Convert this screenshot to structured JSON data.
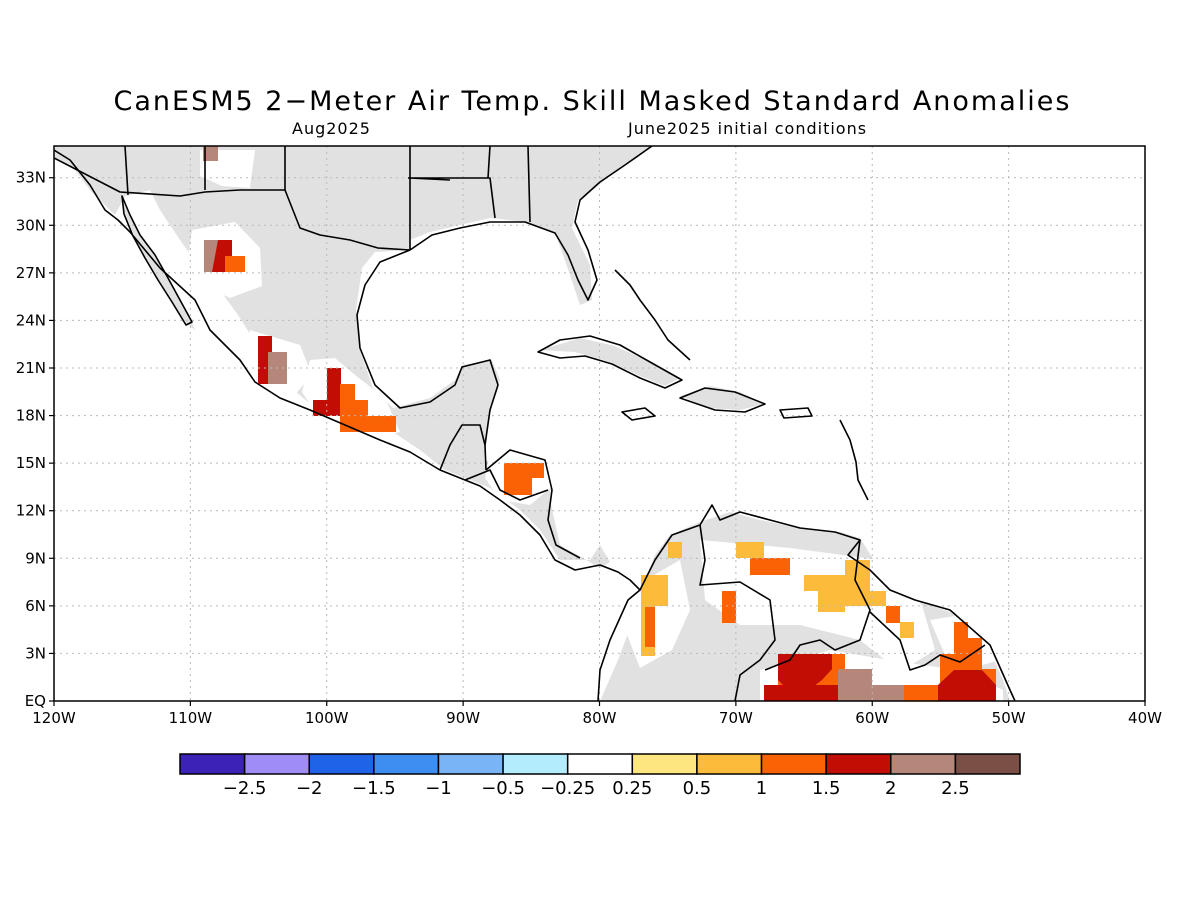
{
  "title": "CanESM5 2−Meter Air Temp. Skill Masked Standard Anomalies",
  "subtitle_left": "Aug2025",
  "subtitle_right": "June2025 initial conditions",
  "map": {
    "lon_range": [
      -120,
      -40
    ],
    "lat_range": [
      0,
      35
    ],
    "lon_ticks": [
      -120,
      -110,
      -100,
      -90,
      -80,
      -70,
      -60,
      -50,
      -40
    ],
    "lon_labels": [
      "120W",
      "110W",
      "100W",
      "90W",
      "80W",
      "70W",
      "60W",
      "50W",
      "40W"
    ],
    "lat_ticks": [
      0,
      3,
      6,
      9,
      12,
      15,
      18,
      21,
      24,
      27,
      30,
      33
    ],
    "lat_labels": [
      "EQ",
      "3N",
      "6N",
      "9N",
      "12N",
      "15N",
      "18N",
      "21N",
      "24N",
      "27N",
      "30N",
      "33N"
    ],
    "gridlines": true,
    "masked_land_color": "#e1e1e1"
  },
  "colorbar": {
    "colors": [
      "#3c22b6",
      "#9f8cf5",
      "#1f63e8",
      "#3d8ef0",
      "#79b4f7",
      "#b3ecfc",
      "#ffffff",
      "#fde680",
      "#fdbb3c",
      "#fb6205",
      "#c20d04",
      "#b4877a",
      "#7b4f45"
    ],
    "labels": [
      "−2.5",
      "−2",
      "−1.5",
      "−1",
      "−0.5",
      "−0.25",
      "0.25",
      "0.5",
      "1",
      "1.5",
      "2",
      "2.5"
    ]
  },
  "anomalies": [
    {
      "lon": -107.5,
      "lat": 27.5,
      "value": 2.2
    },
    {
      "lon": -106.3,
      "lat": 27.0,
      "value": 1.7
    },
    {
      "lon": -104.0,
      "lat": 21.0,
      "value": 2.2
    },
    {
      "lon": -99.5,
      "lat": 19.5,
      "value": 1.8
    },
    {
      "lon": -98.0,
      "lat": 17.8,
      "value": 1.3
    },
    {
      "lon": -86.2,
      "lat": 14.2,
      "value": 1.4
    },
    {
      "lon": -76.5,
      "lat": 6.0,
      "value": 0.8
    },
    {
      "lon": -73.5,
      "lat": 5.5,
      "value": 1.3
    },
    {
      "lon": -70.5,
      "lat": 9.0,
      "value": 0.6
    },
    {
      "lon": -66.0,
      "lat": 8.0,
      "value": 1.3
    },
    {
      "lon": -60.5,
      "lat": 7.0,
      "value": 0.9
    },
    {
      "lon": -56.5,
      "lat": 5.0,
      "value": 1.2
    },
    {
      "lon": -62.0,
      "lat": 1.5,
      "value": 2.1
    },
    {
      "lon": -55.0,
      "lat": 1.5,
      "value": 1.9
    },
    {
      "lon": -60.0,
      "lat": 1.0,
      "value": 2.6
    }
  ]
}
